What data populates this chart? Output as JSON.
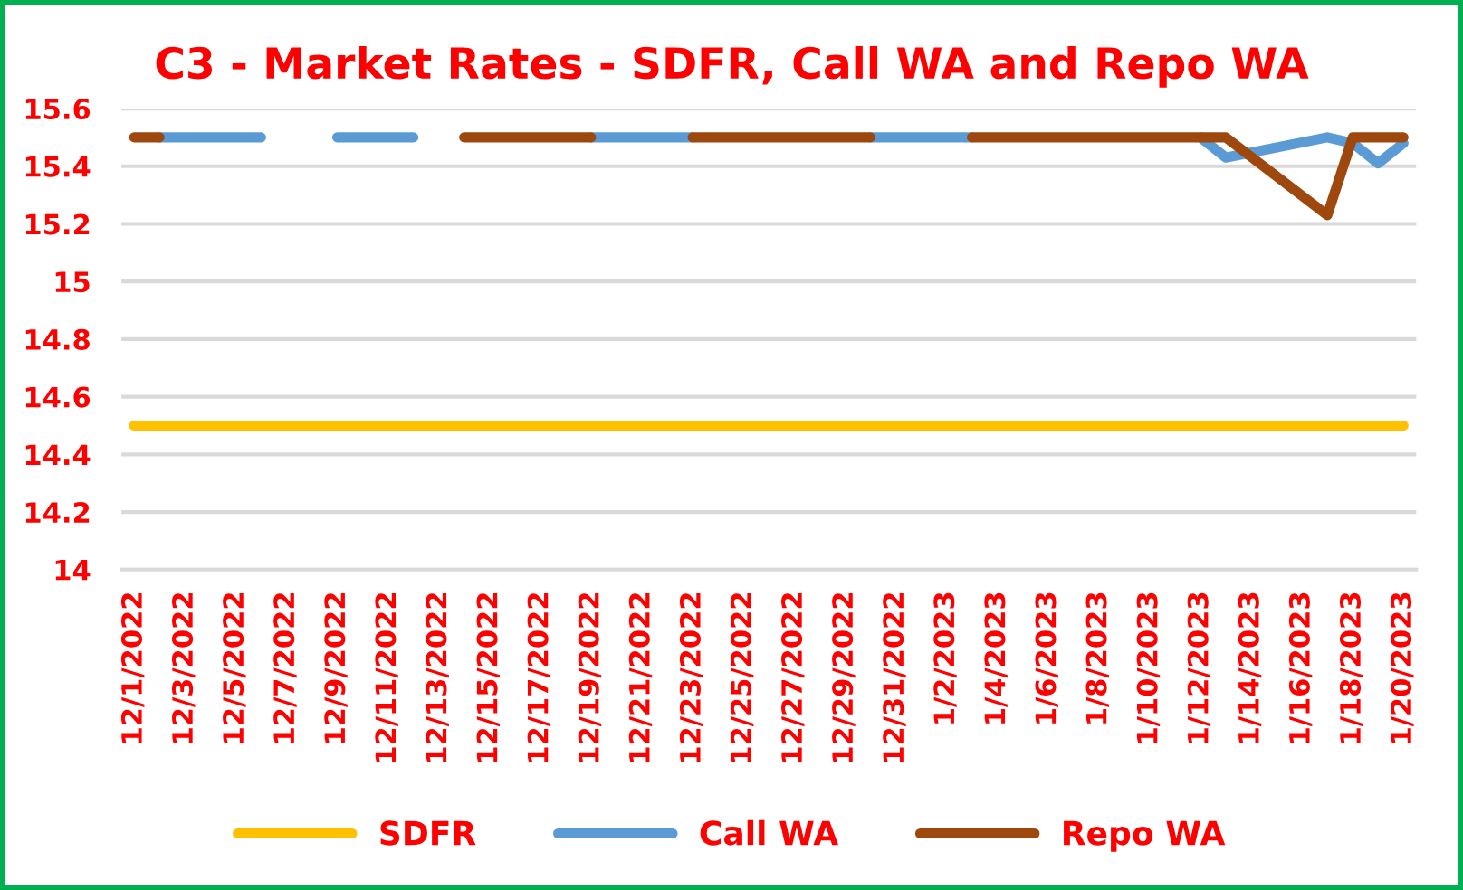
{
  "chart_data": {
    "type": "line",
    "title": "C3 - Market Rates - SDFR, Call WA and Repo WA",
    "x": [
      "2022-12-01",
      "2022-12-02",
      "2022-12-05",
      "2022-12-06",
      "2022-12-07",
      "2022-12-08",
      "2022-12-09",
      "2022-12-12",
      "2022-12-13",
      "2022-12-14",
      "2022-12-15",
      "2022-12-16",
      "2022-12-19",
      "2022-12-20",
      "2022-12-21",
      "2022-12-22",
      "2022-12-23",
      "2022-12-26",
      "2022-12-27",
      "2022-12-28",
      "2022-12-29",
      "2022-12-30",
      "2023-01-02",
      "2023-01-03",
      "2023-01-04",
      "2023-01-05",
      "2023-01-06",
      "2023-01-09",
      "2023-01-10",
      "2023-01-11",
      "2023-01-12",
      "2023-01-13",
      "2023-01-17",
      "2023-01-18",
      "2023-01-19",
      "2023-01-20"
    ],
    "series": [
      {
        "name": "SDFR",
        "color": "#ffc000",
        "values": [
          14.5,
          14.5,
          14.5,
          14.5,
          14.5,
          14.5,
          14.5,
          14.5,
          14.5,
          14.5,
          14.5,
          14.5,
          14.5,
          14.5,
          14.5,
          14.5,
          14.5,
          14.5,
          14.5,
          14.5,
          14.5,
          14.5,
          14.5,
          14.5,
          14.5,
          14.5,
          14.5,
          14.5,
          14.5,
          14.5,
          14.5,
          14.5,
          14.5,
          14.5,
          14.5,
          14.5
        ]
      },
      {
        "name": "Call WA",
        "color": "#5b9bd5",
        "values": [
          null,
          15.5,
          15.5,
          15.5,
          null,
          null,
          15.5,
          15.5,
          null,
          null,
          null,
          null,
          15.5,
          15.5,
          15.5,
          15.5,
          15.5,
          null,
          null,
          null,
          null,
          15.5,
          15.5,
          15.5,
          null,
          null,
          null,
          null,
          null,
          null,
          15.5,
          15.43,
          15.5,
          15.48,
          15.41,
          15.48
        ]
      },
      {
        "name": "Repo WA",
        "color": "#9e480e",
        "values": [
          15.5,
          15.5,
          null,
          null,
          null,
          null,
          null,
          null,
          null,
          15.5,
          15.5,
          15.5,
          15.5,
          null,
          null,
          null,
          15.5,
          15.5,
          15.5,
          15.5,
          15.5,
          15.5,
          null,
          15.5,
          15.5,
          15.5,
          15.5,
          15.5,
          15.5,
          15.5,
          15.5,
          15.5,
          15.23,
          15.5,
          15.5,
          15.5
        ]
      }
    ],
    "xlim": [
      "2022-11-30T12:00",
      "2023-01-20T12:00"
    ],
    "xticks": [
      {
        "value": "2022-12-01",
        "label": "12/1/2022"
      },
      {
        "value": "2022-12-03",
        "label": "12/3/2022"
      },
      {
        "value": "2022-12-05",
        "label": "12/5/2022"
      },
      {
        "value": "2022-12-07",
        "label": "12/7/2022"
      },
      {
        "value": "2022-12-09",
        "label": "12/9/2022"
      },
      {
        "value": "2022-12-11",
        "label": "12/11/2022"
      },
      {
        "value": "2022-12-13",
        "label": "12/13/2022"
      },
      {
        "value": "2022-12-15",
        "label": "12/15/2022"
      },
      {
        "value": "2022-12-17",
        "label": "12/17/2022"
      },
      {
        "value": "2022-12-19",
        "label": "12/19/2022"
      },
      {
        "value": "2022-12-21",
        "label": "12/21/2022"
      },
      {
        "value": "2022-12-23",
        "label": "12/23/2022"
      },
      {
        "value": "2022-12-25",
        "label": "12/25/2022"
      },
      {
        "value": "2022-12-27",
        "label": "12/27/2022"
      },
      {
        "value": "2022-12-29",
        "label": "12/29/2022"
      },
      {
        "value": "2022-12-31",
        "label": "12/31/2022"
      },
      {
        "value": "2023-01-02",
        "label": "1/2/2023"
      },
      {
        "value": "2023-01-04",
        "label": "1/4/2023"
      },
      {
        "value": "2023-01-06",
        "label": "1/6/2023"
      },
      {
        "value": "2023-01-08",
        "label": "1/8/2023"
      },
      {
        "value": "2023-01-10",
        "label": "1/10/2023"
      },
      {
        "value": "2023-01-12",
        "label": "1/12/2023"
      },
      {
        "value": "2023-01-14",
        "label": "1/14/2023"
      },
      {
        "value": "2023-01-16",
        "label": "1/16/2023"
      },
      {
        "value": "2023-01-18",
        "label": "1/18/2023"
      },
      {
        "value": "2023-01-20",
        "label": "1/20/2023"
      }
    ],
    "ylim": [
      14,
      15.6
    ],
    "yticks": [
      14,
      14.2,
      14.4,
      14.6,
      14.8,
      15,
      15.2,
      15.4,
      15.6
    ],
    "grid": "y",
    "legend": "bottom",
    "marker": "none",
    "line_style": "solid"
  }
}
